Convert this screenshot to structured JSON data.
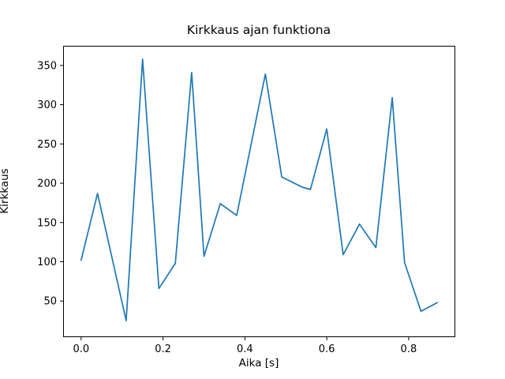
{
  "chart_data": {
    "type": "line",
    "title": "Kirkkaus ajan funktiona",
    "xlabel": "Aika [s]",
    "ylabel": "Kirkkaus",
    "x": [
      0.0,
      0.04,
      0.11,
      0.15,
      0.19,
      0.23,
      0.27,
      0.3,
      0.34,
      0.38,
      0.45,
      0.49,
      0.54,
      0.56,
      0.6,
      0.64,
      0.68,
      0.72,
      0.76,
      0.79,
      0.83,
      0.87
    ],
    "y": [
      102,
      187,
      25,
      358,
      66,
      98,
      341,
      107,
      174,
      159,
      339,
      208,
      195,
      192,
      269,
      109,
      148,
      118,
      309,
      99,
      37,
      48
    ],
    "xlim": [
      -0.044,
      0.912
    ],
    "ylim": [
      5,
      375
    ],
    "xticks": [
      0.0,
      0.2,
      0.4,
      0.6,
      0.8
    ],
    "xtick_labels": [
      "0.0",
      "0.2",
      "0.4",
      "0.6",
      "0.8"
    ],
    "yticks": [
      50,
      100,
      150,
      200,
      250,
      300,
      350
    ],
    "ytick_labels": [
      "50",
      "100",
      "150",
      "200",
      "250",
      "300",
      "350"
    ],
    "line_color": "#1f77b4",
    "axis_color": "#000000",
    "background_color": "#ffffff",
    "grid": false,
    "legend": "none"
  }
}
